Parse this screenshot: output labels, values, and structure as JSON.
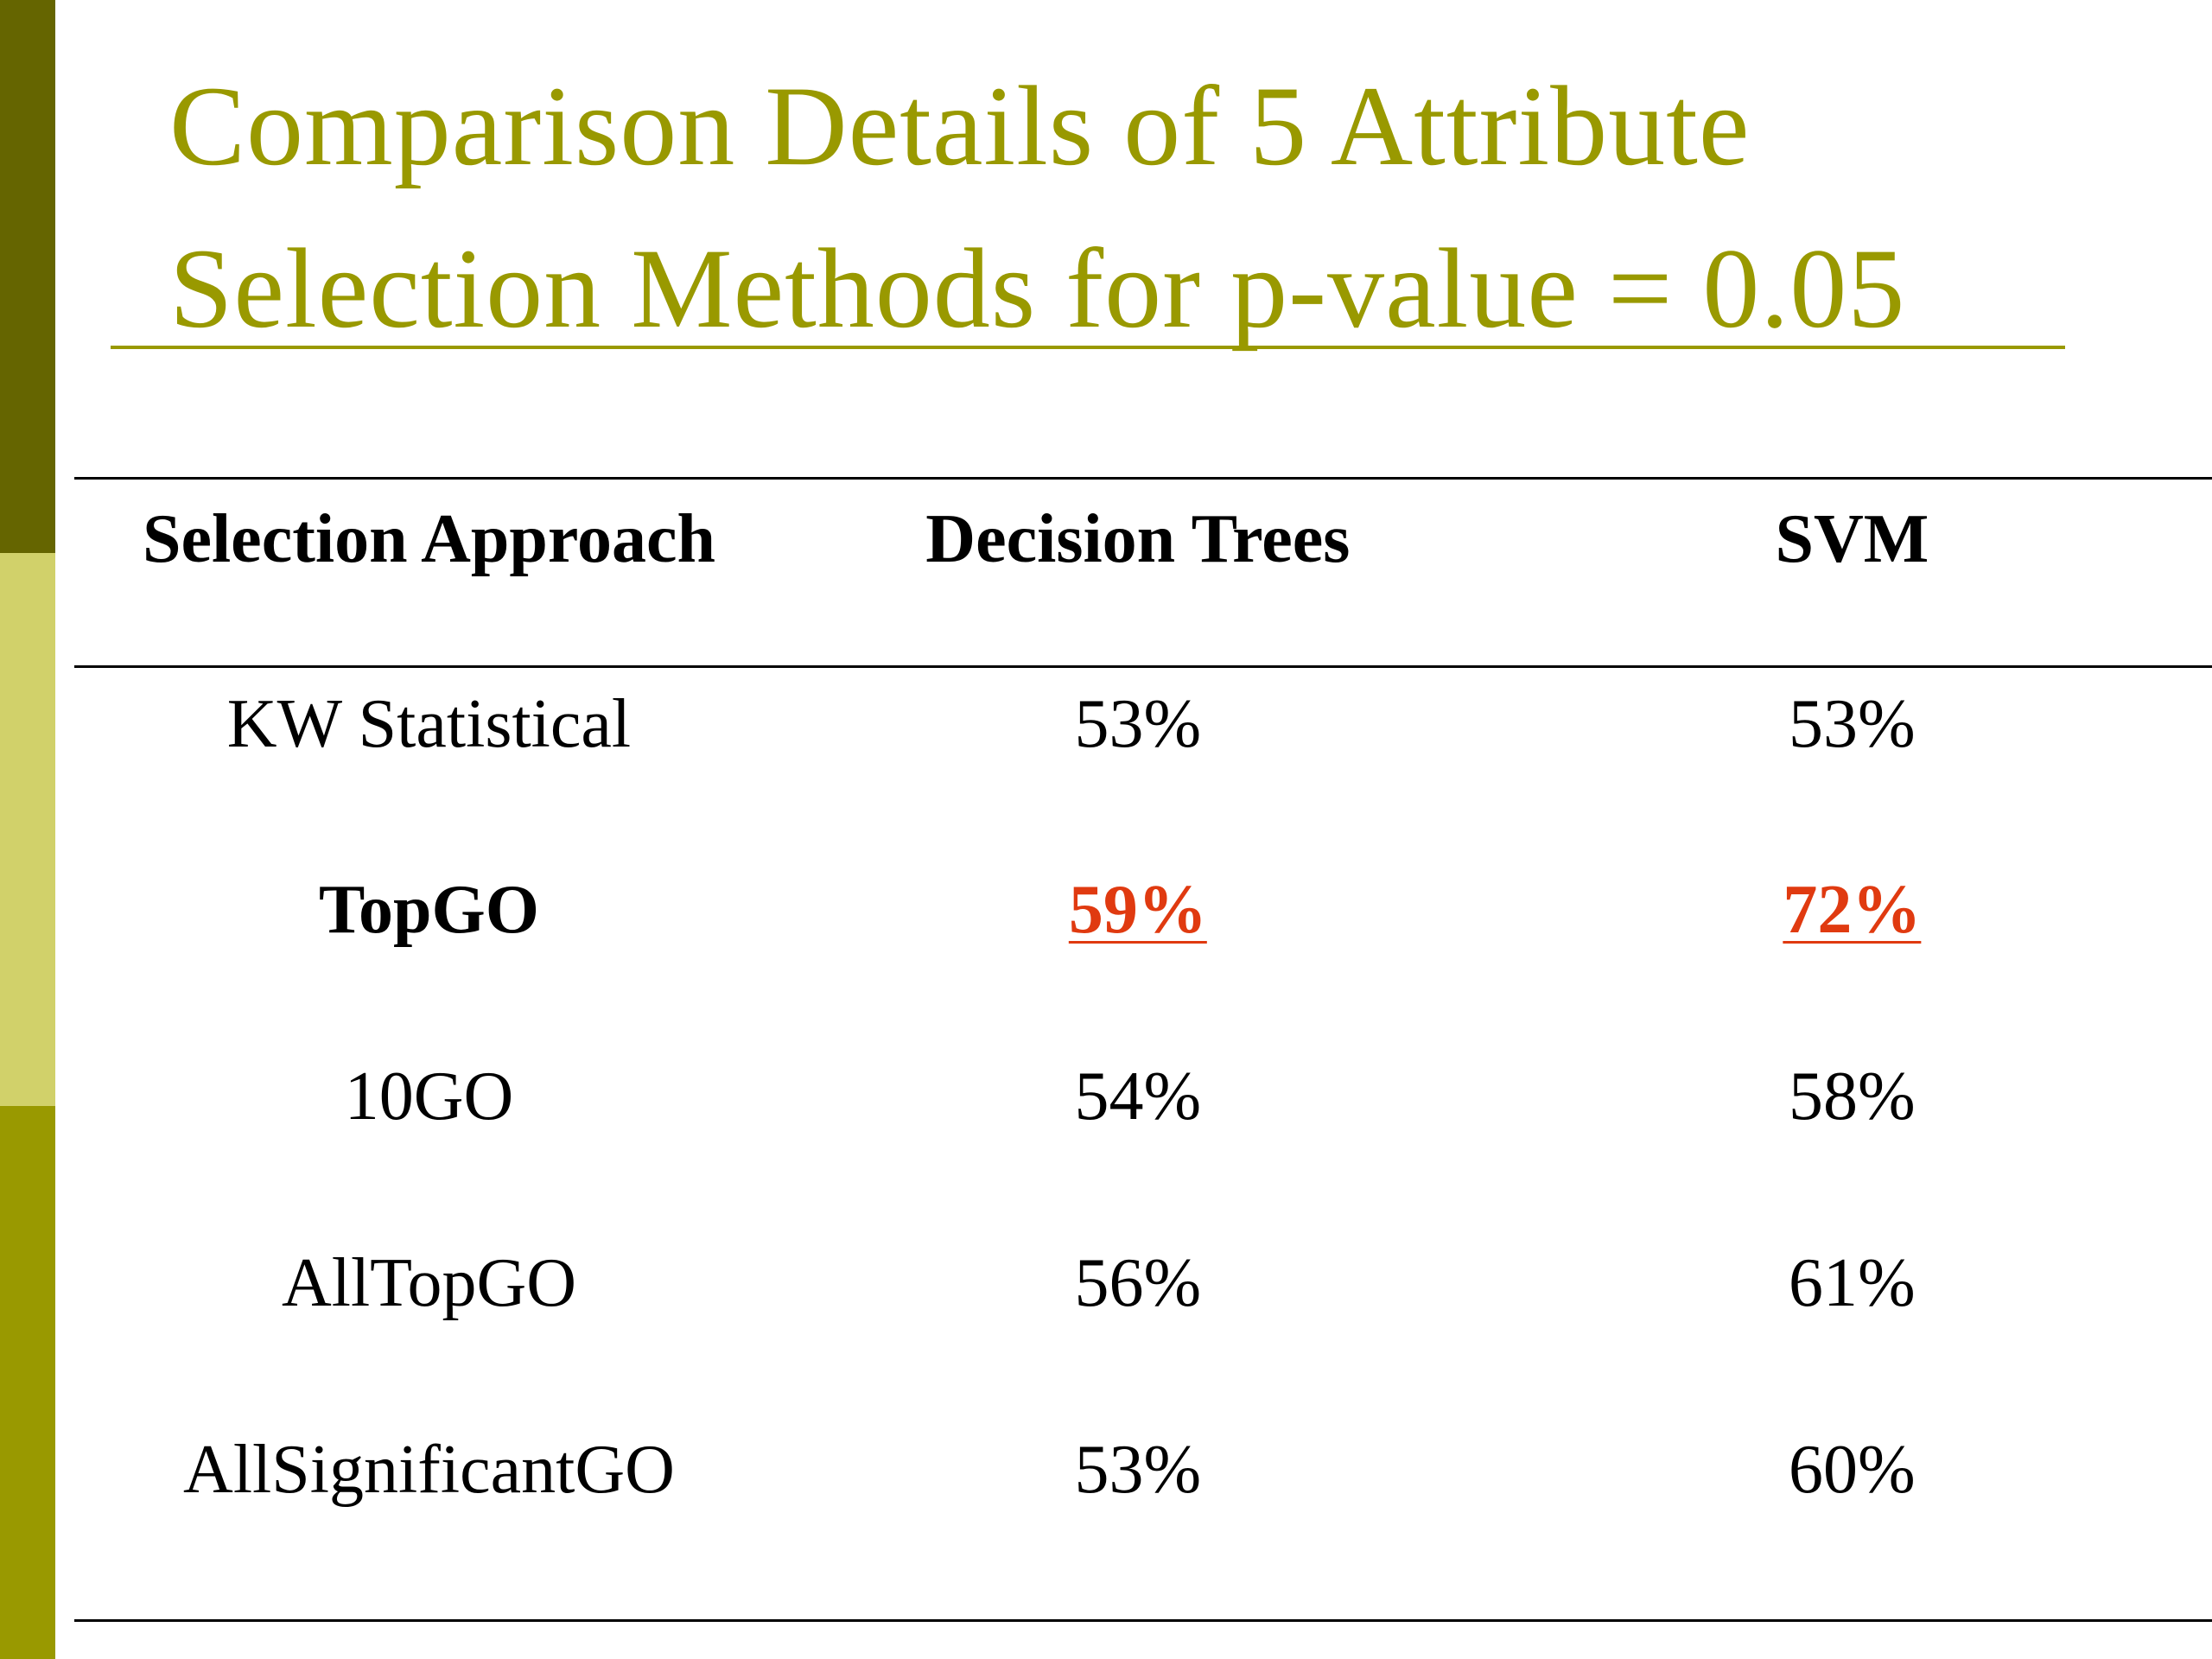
{
  "slide": {
    "title_line1": "Comparison Details of 5 Attribute",
    "title_line2": "Selection Methods for p-value = 0.05",
    "colors": {
      "title": "#999900",
      "highlight": "#e03a10",
      "sidebar": [
        "#656500",
        "#d1d16a",
        "#999900"
      ]
    }
  },
  "table": {
    "headers": [
      "Selection Approach",
      "Decision Trees",
      "SVM"
    ],
    "rows": [
      {
        "approach": "KW Statistical",
        "decision_trees": "53%",
        "svm": "53%"
      },
      {
        "approach": "TopGO",
        "decision_trees": "59%",
        "svm": "72%"
      },
      {
        "approach": "10GO",
        "decision_trees": "54%",
        "svm": "58%"
      },
      {
        "approach": "AllTopGO",
        "decision_trees": "56%",
        "svm": "61%"
      },
      {
        "approach": "AllSignificantGO",
        "decision_trees": "53%",
        "svm": "60%"
      }
    ]
  }
}
